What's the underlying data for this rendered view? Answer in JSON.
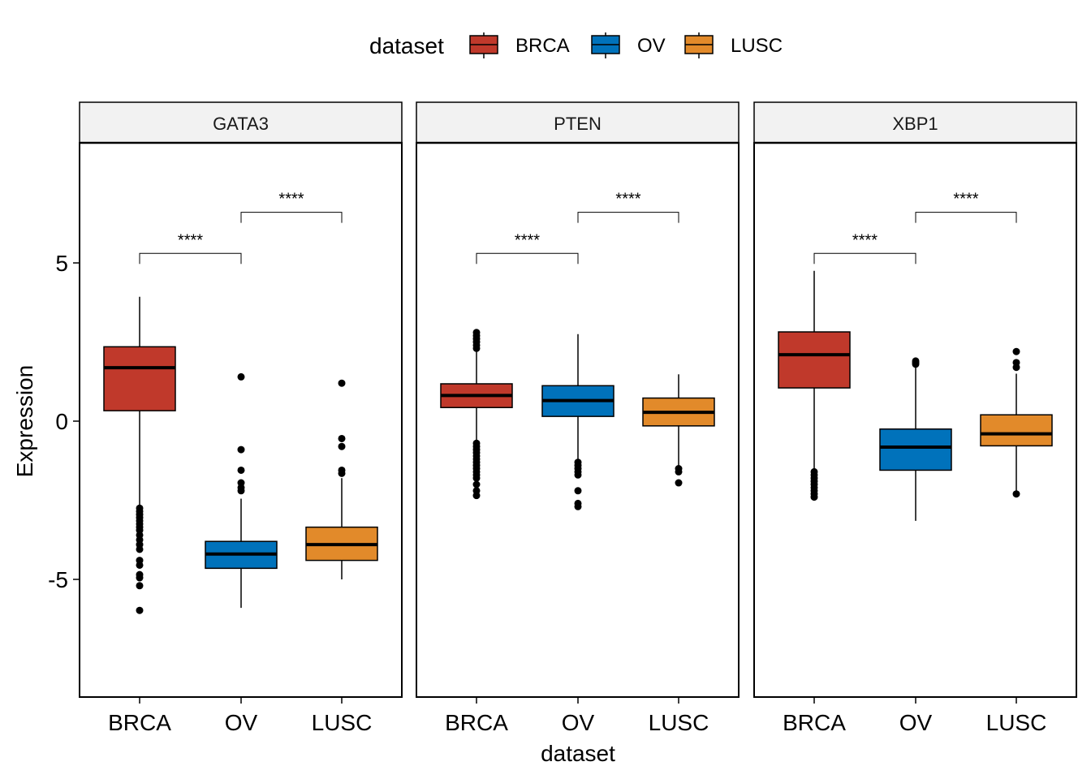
{
  "chart_data": {
    "type": "boxplot",
    "xlabel": "dataset",
    "ylabel": "Expression",
    "ylim": [
      -8.7,
      9.2
    ],
    "yticks": [
      5,
      0,
      -5
    ],
    "ytick_labels": [
      "5",
      "0",
      "-5"
    ],
    "categories": [
      "BRCA",
      "OV",
      "LUSC"
    ],
    "legend": {
      "title": "dataset",
      "position": "top",
      "entries": [
        {
          "name": "BRCA",
          "color": "#C0392B"
        },
        {
          "name": "OV",
          "color": "#0072BB"
        },
        {
          "name": "LUSC",
          "color": "#E28A2A"
        }
      ]
    },
    "panels": [
      {
        "title": "GATA3",
        "boxes": [
          {
            "category": "BRCA",
            "q1": 0.33,
            "median": 1.69,
            "q3": 2.35,
            "whisker_low": -2.7,
            "whisker_high": 3.93,
            "outliers": [
              -2.75,
              -2.85,
              -2.95,
              -3.05,
              -3.15,
              -3.25,
              -3.35,
              -3.45,
              -3.6,
              -3.75,
              -3.9,
              -4.05,
              -4.4,
              -4.55,
              -4.85,
              -4.95,
              -5.2,
              -5.98
            ]
          },
          {
            "category": "OV",
            "q1": -4.65,
            "median": -4.2,
            "q3": -3.8,
            "whisker_low": -5.9,
            "whisker_high": -2.45,
            "outliers": [
              1.4,
              -0.9,
              -1.55,
              -1.95,
              -2.1,
              -2.2
            ]
          },
          {
            "category": "LUSC",
            "q1": -4.4,
            "median": -3.9,
            "q3": -3.35,
            "whisker_low": -5.0,
            "whisker_high": -1.8,
            "outliers": [
              1.2,
              -0.55,
              -0.8,
              -1.55,
              -1.65
            ]
          }
        ],
        "comparisons": [
          {
            "from": "BRCA",
            "to": "OV",
            "label": "****",
            "y": 5.3
          },
          {
            "from": "OV",
            "to": "LUSC",
            "label": "****",
            "y": 6.6
          }
        ]
      },
      {
        "title": "PTEN",
        "boxes": [
          {
            "category": "BRCA",
            "q1": 0.43,
            "median": 0.81,
            "q3": 1.18,
            "whisker_low": -0.6,
            "whisker_high": 2.2,
            "outliers": [
              2.3,
              2.4,
              2.5,
              2.6,
              2.7,
              2.8,
              -0.7,
              -0.8,
              -0.9,
              -1.0,
              -1.1,
              -1.2,
              -1.3,
              -1.4,
              -1.5,
              -1.6,
              -1.7,
              -1.8,
              -2.0,
              -2.2,
              -2.35
            ]
          },
          {
            "category": "OV",
            "q1": 0.15,
            "median": 0.65,
            "q3": 1.12,
            "whisker_low": -1.2,
            "whisker_high": 2.75,
            "outliers": [
              -1.3,
              -1.4,
              -1.5,
              -1.6,
              -1.7,
              -2.2,
              -2.6,
              -2.7
            ]
          },
          {
            "category": "LUSC",
            "q1": -0.15,
            "median": 0.28,
            "q3": 0.73,
            "whisker_low": -1.4,
            "whisker_high": 1.48,
            "outliers": [
              -1.5,
              -1.6,
              -1.95
            ]
          }
        ],
        "comparisons": [
          {
            "from": "BRCA",
            "to": "OV",
            "label": "****",
            "y": 5.3
          },
          {
            "from": "OV",
            "to": "LUSC",
            "label": "****",
            "y": 6.6
          }
        ]
      },
      {
        "title": "XBP1",
        "boxes": [
          {
            "category": "BRCA",
            "q1": 1.05,
            "median": 2.1,
            "q3": 2.82,
            "whisker_low": -1.5,
            "whisker_high": 4.75,
            "outliers": [
              -1.6,
              -1.7,
              -1.8,
              -1.9,
              -2.0,
              -2.1,
              -2.2,
              -2.3,
              -2.4
            ]
          },
          {
            "category": "OV",
            "q1": -1.55,
            "median": -0.82,
            "q3": -0.25,
            "whisker_low": -3.15,
            "whisker_high": 1.75,
            "outliers": [
              1.8,
              1.85,
              1.9
            ]
          },
          {
            "category": "LUSC",
            "q1": -0.78,
            "median": -0.4,
            "q3": 0.2,
            "whisker_low": -2.25,
            "whisker_high": 1.5,
            "outliers": [
              1.7,
              1.85,
              2.2,
              -2.3
            ]
          }
        ],
        "comparisons": [
          {
            "from": "BRCA",
            "to": "OV",
            "label": "****",
            "y": 5.3
          },
          {
            "from": "OV",
            "to": "LUSC",
            "label": "****",
            "y": 6.6
          }
        ]
      }
    ]
  }
}
